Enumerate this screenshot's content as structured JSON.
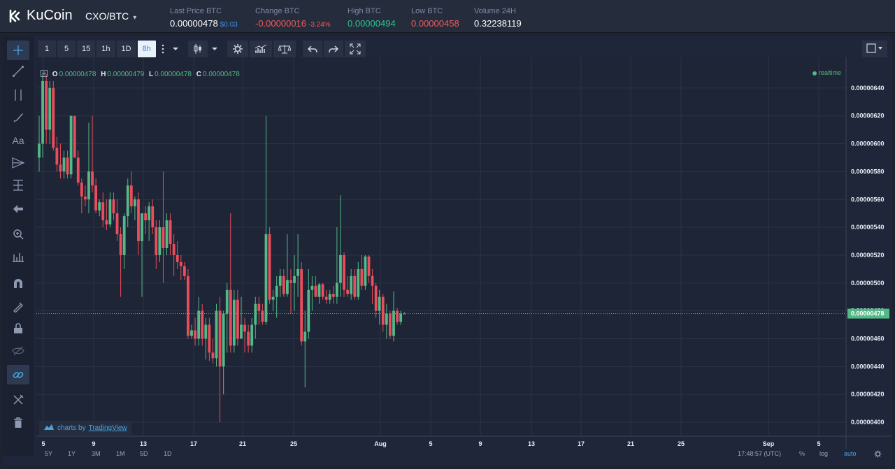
{
  "header": {
    "logo_text": "KuCoin",
    "pair": "CXO/BTC",
    "pair_caret": "▾",
    "stats": [
      {
        "label": "Last Price BTC",
        "value": "0.00000478",
        "sub": "$0.03",
        "value_color": "#ffffff",
        "sub_color": "#3d8ee8"
      },
      {
        "label": "Change BTC",
        "value": "-0.00000016",
        "sub": "-3.24%",
        "value_color": "#f05b5b",
        "sub_color": "#f05b5b"
      },
      {
        "label": "High BTC",
        "value": "0.00000494",
        "sub": "",
        "value_color": "#2bc58f",
        "sub_color": "#2bc58f"
      },
      {
        "label": "Low BTC",
        "value": "0.00000458",
        "sub": "",
        "value_color": "#f05b5b",
        "sub_color": "#f05b5b"
      },
      {
        "label": "Volume 24H",
        "value": "0.32238119",
        "sub": "",
        "value_color": "#ffffff",
        "sub_color": "#ffffff"
      }
    ]
  },
  "toolbar": {
    "intervals": [
      "1",
      "5",
      "15",
      "1h",
      "1D",
      "8h"
    ],
    "active_interval": "8h",
    "icons": [
      "more-icon",
      "dropdown-icon",
      "candles-icon",
      "dropdown-icon",
      "settings-icon",
      "indicators-icon",
      "compare-icon",
      "undo-icon",
      "redo-icon",
      "fullscreen-icon"
    ]
  },
  "left_tools": [
    "crosshair-icon",
    "trendline-icon",
    "parallel-channel-icon",
    "brush-icon",
    "text-icon",
    "pitchfork-icon",
    "fib-icon",
    "arrow-icon",
    "zoom-icon",
    "measure-icon",
    "magnet-icon",
    "stay-in-draw-icon",
    "lock-icon",
    "hide-icon",
    "link-icon",
    "tools-icon",
    "trash-icon"
  ],
  "legend": {
    "o_label": "O",
    "o_value": "0.00000478",
    "h_label": "H",
    "h_value": "0.00000479",
    "l_label": "L",
    "l_value": "0.00000478",
    "c_label": "C",
    "c_value": "0.00000478"
  },
  "realtime_label": "realtime",
  "tradingview_badge": {
    "prefix": "charts by",
    "link": "TradingView"
  },
  "bottom": {
    "ranges": [
      "5Y",
      "1Y",
      "3M",
      "1M",
      "5D",
      "1D"
    ],
    "time": "17:48:57 (UTC)",
    "percent": "%",
    "log": "log",
    "auto": "auto"
  },
  "chart_data": {
    "type": "candlestick",
    "ylim": [
      3.9e-06,
      6.6e-06
    ],
    "y_ticks": [
      "0.00000640",
      "0.00000620",
      "0.00000600",
      "0.00000580",
      "0.00000560",
      "0.00000540",
      "0.00000520",
      "0.00000500",
      "0.00000480",
      "0.00000460",
      "0.00000440",
      "0.00000420",
      "0.00000400"
    ],
    "last_price": "0.00000478",
    "x_ticks": [
      "5",
      "9",
      "13",
      "17",
      "21",
      "25",
      "Aug",
      "5",
      "9",
      "13",
      "17",
      "21",
      "25",
      "Sep",
      "5"
    ],
    "up_color": "#53b987",
    "down_color": "#eb4d5c",
    "candles": [
      {
        "o": 5.9,
        "h": 6.2,
        "l": 5.8,
        "c": 6.0
      },
      {
        "o": 6.0,
        "h": 6.5,
        "l": 5.9,
        "c": 6.45
      },
      {
        "o": 6.45,
        "h": 6.5,
        "l": 6.0,
        "c": 6.1
      },
      {
        "o": 6.1,
        "h": 6.45,
        "l": 6.0,
        "c": 6.4
      },
      {
        "o": 6.4,
        "h": 6.45,
        "l": 5.95,
        "c": 5.97
      },
      {
        "o": 5.97,
        "h": 6.05,
        "l": 5.8,
        "c": 5.85
      },
      {
        "o": 5.85,
        "h": 6.0,
        "l": 5.75,
        "c": 5.8
      },
      {
        "o": 5.8,
        "h": 5.95,
        "l": 5.75,
        "c": 5.9
      },
      {
        "o": 5.9,
        "h": 5.95,
        "l": 5.75,
        "c": 5.78
      },
      {
        "o": 5.78,
        "h": 6.2,
        "l": 5.75,
        "c": 6.2
      },
      {
        "o": 6.2,
        "h": 6.2,
        "l": 5.9,
        "c": 5.9
      },
      {
        "o": 5.9,
        "h": 5.95,
        "l": 5.7,
        "c": 5.72
      },
      {
        "o": 5.72,
        "h": 5.75,
        "l": 5.5,
        "c": 5.62
      },
      {
        "o": 5.62,
        "h": 5.7,
        "l": 5.55,
        "c": 5.6
      },
      {
        "o": 5.6,
        "h": 6.15,
        "l": 5.5,
        "c": 5.8
      },
      {
        "o": 5.8,
        "h": 6.2,
        "l": 5.65,
        "c": 5.7
      },
      {
        "o": 5.7,
        "h": 5.75,
        "l": 5.5,
        "c": 5.52
      },
      {
        "o": 5.52,
        "h": 5.6,
        "l": 5.48,
        "c": 5.58
      },
      {
        "o": 5.58,
        "h": 5.65,
        "l": 5.4,
        "c": 5.45
      },
      {
        "o": 5.45,
        "h": 5.6,
        "l": 5.38,
        "c": 5.42
      },
      {
        "o": 5.42,
        "h": 5.65,
        "l": 5.4,
        "c": 5.6
      },
      {
        "o": 5.6,
        "h": 5.65,
        "l": 5.45,
        "c": 5.5
      },
      {
        "o": 5.5,
        "h": 5.6,
        "l": 5.3,
        "c": 5.35
      },
      {
        "o": 5.35,
        "h": 5.4,
        "l": 4.9,
        "c": 5.2
      },
      {
        "o": 5.2,
        "h": 5.5,
        "l": 5.1,
        "c": 5.48
      },
      {
        "o": 5.48,
        "h": 5.75,
        "l": 5.4,
        "c": 5.7
      },
      {
        "o": 5.7,
        "h": 5.8,
        "l": 5.5,
        "c": 5.55
      },
      {
        "o": 5.55,
        "h": 5.62,
        "l": 5.45,
        "c": 5.6
      },
      {
        "o": 5.6,
        "h": 5.65,
        "l": 5.2,
        "c": 5.3
      },
      {
        "o": 5.3,
        "h": 5.5,
        "l": 4.9,
        "c": 5.5
      },
      {
        "o": 5.5,
        "h": 5.55,
        "l": 5.35,
        "c": 5.45
      },
      {
        "o": 5.45,
        "h": 5.58,
        "l": 5.3,
        "c": 5.55
      },
      {
        "o": 5.55,
        "h": 5.6,
        "l": 5.35,
        "c": 5.4
      },
      {
        "o": 5.4,
        "h": 5.45,
        "l": 5.1,
        "c": 5.2
      },
      {
        "o": 5.2,
        "h": 5.45,
        "l": 5.15,
        "c": 5.4
      },
      {
        "o": 5.4,
        "h": 5.8,
        "l": 5.0,
        "c": 5.25
      },
      {
        "o": 5.25,
        "h": 5.5,
        "l": 5.2,
        "c": 5.45
      },
      {
        "o": 5.45,
        "h": 5.5,
        "l": 5.2,
        "c": 5.28
      },
      {
        "o": 5.28,
        "h": 5.35,
        "l": 5.05,
        "c": 5.2
      },
      {
        "o": 5.2,
        "h": 5.3,
        "l": 5.1,
        "c": 5.15
      },
      {
        "o": 5.15,
        "h": 5.2,
        "l": 5.02,
        "c": 5.12
      },
      {
        "o": 5.12,
        "h": 5.15,
        "l": 5.02,
        "c": 5.05
      },
      {
        "o": 5.05,
        "h": 5.1,
        "l": 4.6,
        "c": 4.62
      },
      {
        "o": 4.62,
        "h": 4.7,
        "l": 4.6,
        "c": 4.66
      },
      {
        "o": 4.66,
        "h": 4.75,
        "l": 4.55,
        "c": 4.6
      },
      {
        "o": 4.6,
        "h": 4.9,
        "l": 4.55,
        "c": 4.8
      },
      {
        "o": 4.8,
        "h": 4.85,
        "l": 4.55,
        "c": 4.6
      },
      {
        "o": 4.6,
        "h": 4.75,
        "l": 4.45,
        "c": 4.7
      },
      {
        "o": 4.7,
        "h": 4.75,
        "l": 4.44,
        "c": 4.5
      },
      {
        "o": 4.5,
        "h": 4.6,
        "l": 4.42,
        "c": 4.46
      },
      {
        "o": 4.46,
        "h": 4.85,
        "l": 4.4,
        "c": 4.8
      },
      {
        "o": 4.8,
        "h": 4.9,
        "l": 4.0,
        "c": 4.4
      },
      {
        "o": 4.4,
        "h": 4.8,
        "l": 4.2,
        "c": 4.78
      },
      {
        "o": 4.78,
        "h": 5.0,
        "l": 4.5,
        "c": 4.95
      },
      {
        "o": 4.95,
        "h": 5.5,
        "l": 4.5,
        "c": 4.55
      },
      {
        "o": 4.55,
        "h": 4.95,
        "l": 4.5,
        "c": 4.88
      },
      {
        "o": 4.88,
        "h": 4.95,
        "l": 4.55,
        "c": 4.6
      },
      {
        "o": 4.6,
        "h": 4.9,
        "l": 4.6,
        "c": 4.7
      },
      {
        "o": 4.7,
        "h": 4.75,
        "l": 4.5,
        "c": 4.65
      },
      {
        "o": 4.65,
        "h": 4.7,
        "l": 4.5,
        "c": 4.55
      },
      {
        "o": 4.55,
        "h": 4.75,
        "l": 4.5,
        "c": 4.7
      },
      {
        "o": 4.7,
        "h": 4.9,
        "l": 4.6,
        "c": 4.85
      },
      {
        "o": 4.85,
        "h": 4.9,
        "l": 4.7,
        "c": 4.8
      },
      {
        "o": 4.8,
        "h": 4.85,
        "l": 4.7,
        "c": 4.72
      },
      {
        "o": 4.72,
        "h": 6.2,
        "l": 4.7,
        "c": 5.35
      },
      {
        "o": 5.35,
        "h": 5.4,
        "l": 4.85,
        "c": 4.88
      },
      {
        "o": 4.88,
        "h": 4.95,
        "l": 4.8,
        "c": 4.9
      },
      {
        "o": 4.9,
        "h": 5.05,
        "l": 4.75,
        "c": 4.98
      },
      {
        "o": 4.98,
        "h": 5.1,
        "l": 4.9,
        "c": 5.05
      },
      {
        "o": 5.05,
        "h": 5.1,
        "l": 4.9,
        "c": 4.92
      },
      {
        "o": 4.92,
        "h": 5.35,
        "l": 4.9,
        "c": 5.02
      },
      {
        "o": 5.02,
        "h": 5.1,
        "l": 4.78,
        "c": 5.0
      },
      {
        "o": 5.0,
        "h": 5.2,
        "l": 4.8,
        "c": 5.05
      },
      {
        "o": 5.05,
        "h": 5.35,
        "l": 4.9,
        "c": 5.1
      },
      {
        "o": 5.1,
        "h": 5.15,
        "l": 4.55,
        "c": 4.58
      },
      {
        "o": 4.58,
        "h": 4.8,
        "l": 4.25,
        "c": 4.65
      },
      {
        "o": 4.65,
        "h": 5.1,
        "l": 4.6,
        "c": 4.95
      },
      {
        "o": 4.95,
        "h": 5.05,
        "l": 4.8,
        "c": 4.98
      },
      {
        "o": 4.98,
        "h": 5.05,
        "l": 4.9,
        "c": 4.9
      },
      {
        "o": 4.9,
        "h": 5.0,
        "l": 4.85,
        "c": 4.99
      },
      {
        "o": 4.99,
        "h": 5.0,
        "l": 4.88,
        "c": 4.9
      },
      {
        "o": 4.9,
        "h": 4.95,
        "l": 4.85,
        "c": 4.88
      },
      {
        "o": 4.88,
        "h": 4.95,
        "l": 4.85,
        "c": 4.92
      },
      {
        "o": 4.92,
        "h": 4.98,
        "l": 4.85,
        "c": 4.9
      },
      {
        "o": 4.9,
        "h": 5.4,
        "l": 4.85,
        "c": 5.0
      },
      {
        "o": 5.0,
        "h": 5.63,
        "l": 4.9,
        "c": 5.2
      },
      {
        "o": 5.2,
        "h": 5.22,
        "l": 4.9,
        "c": 4.95
      },
      {
        "o": 4.95,
        "h": 5.05,
        "l": 4.9,
        "c": 4.92
      },
      {
        "o": 4.92,
        "h": 5.1,
        "l": 4.88,
        "c": 5.05
      },
      {
        "o": 5.05,
        "h": 5.1,
        "l": 4.88,
        "c": 4.9
      },
      {
        "o": 4.9,
        "h": 5.15,
        "l": 4.88,
        "c": 5.1
      },
      {
        "o": 5.1,
        "h": 5.2,
        "l": 4.95,
        "c": 4.98
      },
      {
        "o": 4.98,
        "h": 5.2,
        "l": 4.95,
        "c": 5.19
      },
      {
        "o": 5.19,
        "h": 5.2,
        "l": 5.0,
        "c": 5.05
      },
      {
        "o": 5.05,
        "h": 5.1,
        "l": 4.85,
        "c": 4.98
      },
      {
        "o": 4.98,
        "h": 5.0,
        "l": 4.75,
        "c": 4.8
      },
      {
        "o": 4.8,
        "h": 4.95,
        "l": 4.7,
        "c": 4.9
      },
      {
        "o": 4.9,
        "h": 4.92,
        "l": 4.65,
        "c": 4.7
      },
      {
        "o": 4.7,
        "h": 4.85,
        "l": 4.6,
        "c": 4.78
      },
      {
        "o": 4.78,
        "h": 4.8,
        "l": 4.6,
        "c": 4.62
      },
      {
        "o": 4.62,
        "h": 4.94,
        "l": 4.58,
        "c": 4.8
      },
      {
        "o": 4.8,
        "h": 4.82,
        "l": 4.7,
        "c": 4.72
      },
      {
        "o": 4.72,
        "h": 4.8,
        "l": 4.7,
        "c": 4.78
      },
      {
        "o": 4.78,
        "h": 4.79,
        "l": 4.78,
        "c": 4.78
      }
    ]
  }
}
